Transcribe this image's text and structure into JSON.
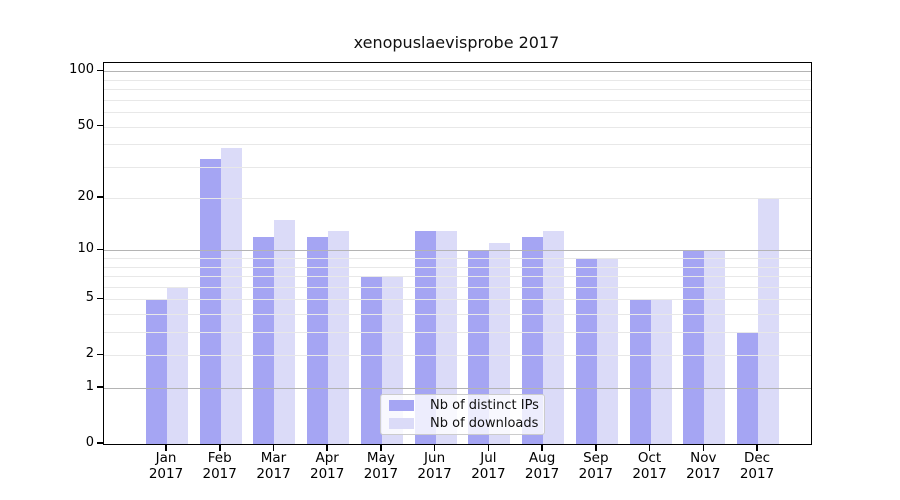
{
  "chart_data": {
    "type": "bar",
    "title": "xenopuslaevisprobe 2017",
    "year": "2017",
    "categories": [
      "Jan",
      "Feb",
      "Mar",
      "Apr",
      "May",
      "Jun",
      "Jul",
      "Aug",
      "Sep",
      "Oct",
      "Nov",
      "Dec"
    ],
    "series": [
      {
        "name": "Nb of distinct IPs",
        "color": "#a5a5f3",
        "values": [
          5,
          33,
          12,
          12,
          7,
          13,
          10,
          12,
          9,
          5,
          10,
          3
        ]
      },
      {
        "name": "Nb of downloads",
        "color": "#dbdbf8",
        "values": [
          6,
          38,
          15,
          13,
          7,
          13,
          11,
          13,
          9,
          5,
          10,
          20
        ]
      }
    ],
    "yscale": "log(value+1)",
    "yticks": [
      0,
      1,
      2,
      5,
      10,
      20,
      50,
      100
    ],
    "ylim": [
      0,
      112
    ],
    "grid": "horizontal major (1,10,100) and minor (2-9, 20-90)",
    "grid_minor_values": [
      2,
      3,
      4,
      5,
      6,
      7,
      8,
      9,
      20,
      30,
      40,
      50,
      60,
      70,
      80,
      90
    ],
    "grid_major_values": [
      1,
      10,
      100
    ],
    "legend_position": "lower center"
  }
}
